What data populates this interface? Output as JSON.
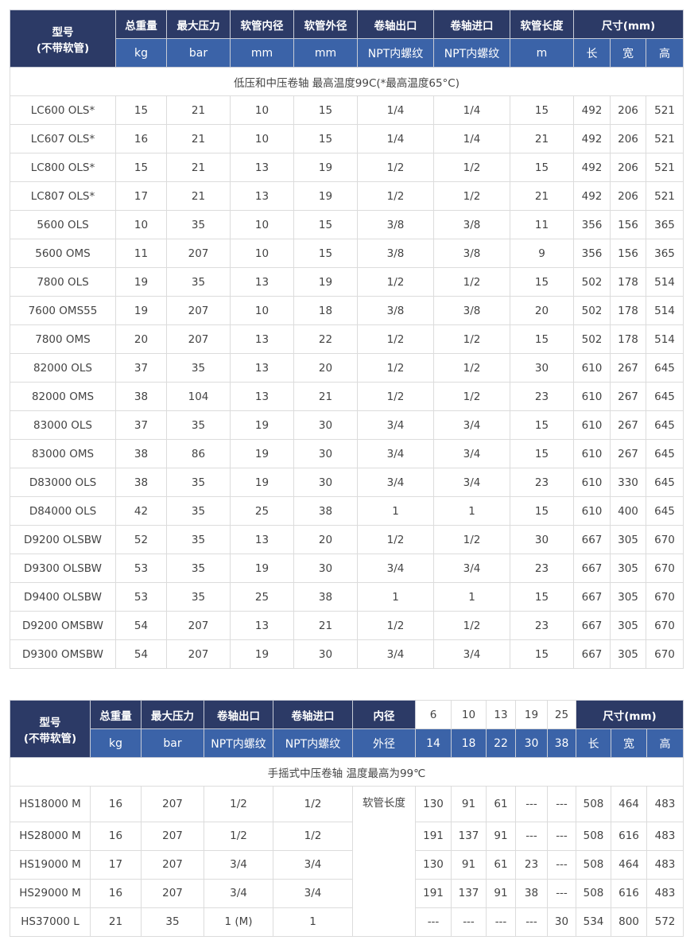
{
  "table1": {
    "headers": [
      "型号\n(不带软管)",
      "总重量",
      "最大压力",
      "软管内径",
      "软管外径",
      "卷轴出口",
      "卷轴进口",
      "软管长度",
      "尺寸(mm)"
    ],
    "units": [
      "kg",
      "bar",
      "mm",
      "mm",
      "NPT内螺纹",
      "NPT内螺纹",
      "m",
      "长",
      "宽",
      "高"
    ],
    "caption": "低压和中压卷轴 最高温度99C(*最高温度65°C)",
    "rows": [
      [
        "LC600 OLS*",
        "15",
        "21",
        "10",
        "15",
        "1/4",
        "1/4",
        "15",
        "492",
        "206",
        "521"
      ],
      [
        "LC607 OLS*",
        "16",
        "21",
        "10",
        "15",
        "1/4",
        "1/4",
        "21",
        "492",
        "206",
        "521"
      ],
      [
        "LC800 OLS*",
        "15",
        "21",
        "13",
        "19",
        "1/2",
        "1/2",
        "15",
        "492",
        "206",
        "521"
      ],
      [
        "LC807 OLS*",
        "17",
        "21",
        "13",
        "19",
        "1/2",
        "1/2",
        "21",
        "492",
        "206",
        "521"
      ],
      [
        "5600 OLS",
        "10",
        "35",
        "10",
        "15",
        "3/8",
        "3/8",
        "11",
        "356",
        "156",
        "365"
      ],
      [
        "5600 OMS",
        "11",
        "207",
        "10",
        "15",
        "3/8",
        "3/8",
        "9",
        "356",
        "156",
        "365"
      ],
      [
        "7800 OLS",
        "19",
        "35",
        "13",
        "19",
        "1/2",
        "1/2",
        "15",
        "502",
        "178",
        "514"
      ],
      [
        "7600 OMS55",
        "19",
        "207",
        "10",
        "18",
        "3/8",
        "3/8",
        "20",
        "502",
        "178",
        "514"
      ],
      [
        "7800 OMS",
        "20",
        "207",
        "13",
        "22",
        "1/2",
        "1/2",
        "15",
        "502",
        "178",
        "514"
      ],
      [
        "82000 OLS",
        "37",
        "35",
        "13",
        "20",
        "1/2",
        "1/2",
        "30",
        "610",
        "267",
        "645"
      ],
      [
        "82000 OMS",
        "38",
        "104",
        "13",
        "21",
        "1/2",
        "1/2",
        "23",
        "610",
        "267",
        "645"
      ],
      [
        "83000 OLS",
        "37",
        "35",
        "19",
        "30",
        "3/4",
        "3/4",
        "15",
        "610",
        "267",
        "645"
      ],
      [
        "83000 OMS",
        "38",
        "86",
        "19",
        "30",
        "3/4",
        "3/4",
        "15",
        "610",
        "267",
        "645"
      ],
      [
        "D83000 OLS",
        "38",
        "35",
        "19",
        "30",
        "3/4",
        "3/4",
        "23",
        "610",
        "330",
        "645"
      ],
      [
        "D84000 OLS",
        "42",
        "35",
        "25",
        "38",
        "1",
        "1",
        "15",
        "610",
        "400",
        "645"
      ],
      [
        "D9200 OLSBW",
        "52",
        "35",
        "13",
        "20",
        "1/2",
        "1/2",
        "30",
        "667",
        "305",
        "670"
      ],
      [
        "D9300 OLSBW",
        "53",
        "35",
        "19",
        "30",
        "3/4",
        "3/4",
        "23",
        "667",
        "305",
        "670"
      ],
      [
        "D9400 OLSBW",
        "53",
        "35",
        "25",
        "38",
        "1",
        "1",
        "15",
        "667",
        "305",
        "670"
      ],
      [
        "D9200 OMSBW",
        "54",
        "207",
        "13",
        "21",
        "1/2",
        "1/2",
        "23",
        "667",
        "305",
        "670"
      ],
      [
        "D9300 OMSBW",
        "54",
        "207",
        "19",
        "30",
        "3/4",
        "3/4",
        "15",
        "667",
        "305",
        "670"
      ]
    ]
  },
  "table2": {
    "headers": [
      "型号\n(不带软管)",
      "总重量",
      "最大压力",
      "卷轴出口",
      "卷轴进口",
      "内径"
    ],
    "inner_diameters": [
      "6",
      "10",
      "13",
      "19",
      "25"
    ],
    "dim_header": "尺寸(mm)",
    "units": [
      "kg",
      "bar",
      "NPT内螺纹",
      "NPT内螺纹",
      "外径"
    ],
    "outer_diameters": [
      "14",
      "18",
      "22",
      "30",
      "38"
    ],
    "dim_units": [
      "长",
      "宽",
      "高"
    ],
    "caption": "手摇式中压卷轴 温度最高为99℃",
    "hose_length_label": "软管长度",
    "rows": [
      [
        "HS18000 M",
        "16",
        "207",
        "1/2",
        "1/2",
        "130",
        "91",
        "61",
        "---",
        "---",
        "508",
        "464",
        "483"
      ],
      [
        "HS28000 M",
        "16",
        "207",
        "1/2",
        "1/2",
        "191",
        "137",
        "91",
        "---",
        "---",
        "508",
        "616",
        "483"
      ],
      [
        "HS19000 M",
        "17",
        "207",
        "3/4",
        "3/4",
        "130",
        "91",
        "61",
        "23",
        "---",
        "508",
        "464",
        "483"
      ],
      [
        "HS29000 M",
        "16",
        "207",
        "3/4",
        "3/4",
        "191",
        "137",
        "91",
        "38",
        "---",
        "508",
        "616",
        "483"
      ],
      [
        "HS37000 L",
        "21",
        "35",
        "1 (M)",
        "1",
        "---",
        "---",
        "---",
        "---",
        "30",
        "534",
        "800",
        "572"
      ]
    ]
  }
}
